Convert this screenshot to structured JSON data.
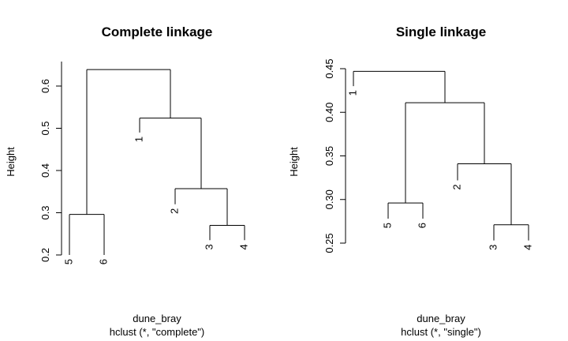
{
  "chart_data": [
    {
      "type": "dendrogram",
      "title": "Complete linkage",
      "ylabel": "Height",
      "xlabel": "dune_bray",
      "sublabel": "hclust (*, \"complete\")",
      "ylim": [
        0.2,
        0.65
      ],
      "yticks": [
        "0.2",
        "0.3",
        "0.4",
        "0.5",
        "0.6"
      ],
      "leaves": [
        {
          "label": "5",
          "height": 0.2
        },
        {
          "label": "6",
          "height": 0.2
        },
        {
          "label": "1",
          "height": 0.49
        },
        {
          "label": "2",
          "height": 0.32
        },
        {
          "label": "3",
          "height": 0.235
        },
        {
          "label": "4",
          "height": 0.235
        }
      ],
      "merges": [
        {
          "left": "3",
          "right": "4",
          "height": 0.27
        },
        {
          "left": "5",
          "right": "6",
          "height": 0.296
        },
        {
          "left": "2",
          "right": "{3,4}",
          "height": 0.357
        },
        {
          "left": "1",
          "right": "{2,3,4}",
          "height": 0.524
        },
        {
          "left": "{5,6}",
          "right": "{1,2,3,4}",
          "height": 0.639
        }
      ]
    },
    {
      "type": "dendrogram",
      "title": "Single linkage",
      "ylabel": "Height",
      "xlabel": "dune_bray",
      "sublabel": "hclust (*, \"single\")",
      "ylim": [
        0.25,
        0.45
      ],
      "yticks": [
        "0.25",
        "0.30",
        "0.35",
        "0.40",
        "0.45"
      ],
      "leaves": [
        {
          "label": "1",
          "height": 0.43
        },
        {
          "label": "5",
          "height": 0.278
        },
        {
          "label": "6",
          "height": 0.278
        },
        {
          "label": "2",
          "height": 0.322
        },
        {
          "label": "3",
          "height": 0.253
        },
        {
          "label": "4",
          "height": 0.253
        }
      ],
      "merges": [
        {
          "left": "3",
          "right": "4",
          "height": 0.271
        },
        {
          "left": "5",
          "right": "6",
          "height": 0.296
        },
        {
          "left": "2",
          "right": "{3,4}",
          "height": 0.341
        },
        {
          "left": "{5,6}",
          "right": "{2,3,4}",
          "height": 0.411
        },
        {
          "left": "1",
          "right": "{5,6,2,3,4}",
          "height": 0.447
        }
      ]
    }
  ]
}
